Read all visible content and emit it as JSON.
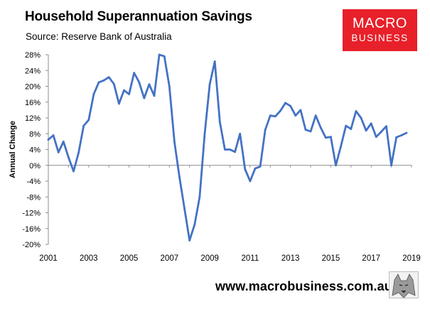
{
  "header": {
    "title": "Household Superannuation Savings",
    "source": "Source: Reserve Bank of Australia"
  },
  "logo": {
    "line1": "MACRO",
    "line2": "BUSINESS"
  },
  "footer": {
    "website": "www.macrobusiness.com.au"
  },
  "colors": {
    "series": "#4472c4",
    "logo_bg": "#e8202a",
    "axis": "#8c8c8c"
  },
  "chart_data": {
    "type": "line",
    "title": "Household Superannuation Savings",
    "subtitle": "Source: Reserve Bank of Australia",
    "xlabel": "",
    "ylabel": "Annual Change",
    "xlim": [
      2001,
      2019
    ],
    "ylim": [
      -20,
      28
    ],
    "y_ticks": [
      28,
      24,
      20,
      16,
      12,
      8,
      4,
      0,
      -4,
      -8,
      -12,
      -16,
      -20
    ],
    "y_tick_labels": [
      "28%",
      "24%",
      "20%",
      "16%",
      "12%",
      "8%",
      "4%",
      "0%",
      "-4%",
      "-8%",
      "-12%",
      "-16%",
      "-20%"
    ],
    "x_ticks": [
      2001,
      2003,
      2005,
      2007,
      2009,
      2011,
      2013,
      2015,
      2017,
      2019
    ],
    "x_tick_labels": [
      "2001",
      "2003",
      "2005",
      "2007",
      "2009",
      "2011",
      "2013",
      "2015",
      "2017",
      "2019"
    ],
    "grid": false,
    "legend": "none",
    "series": [
      {
        "name": "Household Superannuation Savings",
        "x": [
          2001.0,
          2001.25,
          2001.5,
          2001.75,
          2002.0,
          2002.25,
          2002.5,
          2002.75,
          2003.0,
          2003.25,
          2003.5,
          2003.75,
          2004.0,
          2004.25,
          2004.5,
          2004.75,
          2005.0,
          2005.25,
          2005.5,
          2005.75,
          2006.0,
          2006.25,
          2006.5,
          2006.75,
          2007.0,
          2007.25,
          2007.5,
          2007.75,
          2008.0,
          2008.25,
          2008.5,
          2008.75,
          2009.0,
          2009.25,
          2009.5,
          2009.75,
          2010.0,
          2010.25,
          2010.5,
          2010.75,
          2011.0,
          2011.25,
          2011.5,
          2011.75,
          2012.0,
          2012.25,
          2012.5,
          2012.75,
          2013.0,
          2013.25,
          2013.5,
          2013.75,
          2014.0,
          2014.25,
          2014.5,
          2014.75,
          2015.0,
          2015.25,
          2015.5,
          2015.75,
          2016.0,
          2016.25,
          2016.5,
          2016.75,
          2017.0,
          2017.25,
          2017.5,
          2017.75,
          2018.0,
          2018.25,
          2018.5,
          2018.75
        ],
        "values": [
          6.5,
          7.6,
          3.3,
          6.0,
          2.0,
          -1.5,
          3.2,
          10.0,
          11.5,
          18.0,
          21.0,
          21.5,
          22.3,
          20.6,
          15.6,
          19.0,
          18.0,
          23.4,
          21.0,
          17.0,
          20.5,
          17.6,
          28.0,
          27.6,
          20.0,
          6.0,
          -3.0,
          -11.0,
          -19.0,
          -15.0,
          -8.0,
          8.0,
          20.5,
          26.3,
          11.0,
          4.0,
          4.0,
          3.4,
          8.0,
          -1.0,
          -4.0,
          -0.8,
          -0.3,
          9.0,
          12.6,
          12.4,
          13.8,
          15.8,
          15.0,
          12.6,
          14.0,
          9.0,
          8.6,
          12.6,
          9.5,
          7.0,
          7.2,
          0.0,
          4.8,
          10.0,
          9.2,
          13.7,
          12.0,
          8.8,
          10.6,
          7.2,
          8.5,
          9.9,
          0.0,
          7.1,
          7.6,
          8.2
        ]
      }
    ]
  }
}
